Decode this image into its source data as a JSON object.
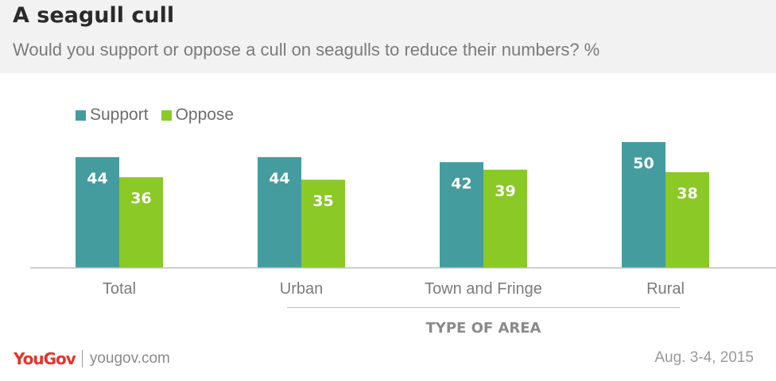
{
  "header": {
    "title": "A seagull cull",
    "subtitle": "Would you support or oppose a cull on seagulls to reduce their numbers? %"
  },
  "legend": [
    {
      "name": "Support",
      "color": "#459c9e"
    },
    {
      "name": "Oppose",
      "color": "#8ac926"
    }
  ],
  "chart_data": {
    "type": "bar",
    "title": "A seagull cull",
    "subtitle": "Would you support or oppose a cull on seagulls to reduce their numbers? %",
    "categories": [
      "Total",
      "Urban",
      "Town and Fringe",
      "Rural"
    ],
    "series": [
      {
        "name": "Support",
        "color": "#459c9e",
        "values": [
          44,
          44,
          42,
          50
        ]
      },
      {
        "name": "Oppose",
        "color": "#8ac926",
        "values": [
          36,
          35,
          39,
          38
        ]
      }
    ],
    "xlabel": "TYPE OF AREA",
    "xlabel_covers": [
      "Urban",
      "Town and Fringe",
      "Rural"
    ],
    "ylabel": "",
    "ylim": [
      0,
      50
    ],
    "grid": false,
    "legend_position": "top-left",
    "data_labels": true
  },
  "footer": {
    "brand": "YouGov",
    "url": "yougov.com",
    "date": "Aug. 3-4, 2015"
  }
}
